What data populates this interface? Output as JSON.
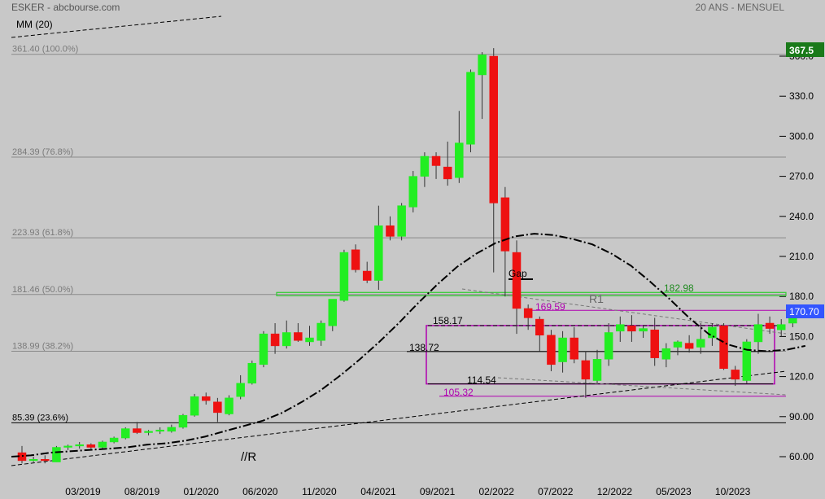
{
  "header": {
    "symbol_source": "ESKER - abcbourse.com",
    "period": "20 ANS - MENSUEL",
    "indicator": "MM (20)"
  },
  "colors": {
    "background": "#c8c8c8",
    "up": "#22ee22",
    "down": "#ee1111",
    "fib_label": "#7a7a7a",
    "green_level": "#1f8a1f",
    "magenta": "#b000b0",
    "last_price_bg": "#1a7a1a",
    "current_tag_bg": "#3355ff",
    "text": "#000000"
  },
  "chart_data": {
    "type": "candlestick",
    "y_axis": {
      "ticks": [
        "60.00",
        "90.00",
        "120.0",
        "150.0",
        "180.0",
        "210.0",
        "240.0",
        "270.0",
        "300.0",
        "330.0",
        "360.0"
      ],
      "range": [
        43,
        376
      ]
    },
    "x_axis": {
      "labels": [
        "03/2019",
        "08/2019",
        "01/2020",
        "06/2020",
        "11/2020",
        "04/2021",
        "09/2021",
        "02/2022",
        "07/2022",
        "12/2022",
        "05/2023",
        "10/2023"
      ]
    },
    "price_tags": {
      "last_high": "367.5",
      "current": "170.70"
    },
    "fib_levels": [
      {
        "label": "361.40  (100.0%)",
        "value": 361.4
      },
      {
        "label": "284.39  (76.8%)",
        "value": 284.39
      },
      {
        "label": "223.93  (61.8%)",
        "value": 223.93
      },
      {
        "label": "181.46  (50.0%)",
        "value": 181.46
      },
      {
        "label": "138.99  (38.2%)",
        "value": 138.99
      },
      {
        "label": "85.39  (23.6%)",
        "value": 85.39
      }
    ],
    "annotations": {
      "gap": "Gap",
      "r1": "R1",
      "level_182": "182.98",
      "level_169": "169.59",
      "level_158": "158.17",
      "level_138": "138.72",
      "level_114": "114.54",
      "level_105": "105.32",
      "support_label": "//R"
    },
    "candles": [
      [
        63,
        68,
        55,
        57
      ],
      [
        57,
        60,
        56,
        58
      ],
      [
        58,
        61,
        55,
        57
      ],
      [
        56,
        68,
        56,
        67
      ],
      [
        67,
        69,
        65,
        68
      ],
      [
        68,
        71,
        66,
        69
      ],
      [
        69,
        70,
        66,
        67
      ],
      [
        67,
        72,
        66,
        71
      ],
      [
        71,
        75,
        70,
        74
      ],
      [
        74,
        82,
        73,
        81
      ],
      [
        81,
        86,
        77,
        78
      ],
      [
        78,
        80,
        76,
        79
      ],
      [
        79,
        82,
        77,
        80
      ],
      [
        79,
        84,
        78,
        82
      ],
      [
        82,
        92,
        81,
        91
      ],
      [
        91,
        107,
        90,
        105
      ],
      [
        105,
        108,
        99,
        102
      ],
      [
        101,
        104,
        86,
        93
      ],
      [
        92,
        106,
        91,
        104
      ],
      [
        105,
        121,
        103,
        115
      ],
      [
        115,
        132,
        114,
        130
      ],
      [
        129,
        154,
        127,
        152
      ],
      [
        152,
        160,
        137,
        143
      ],
      [
        143,
        162,
        141,
        153
      ],
      [
        153,
        160,
        146,
        147
      ],
      [
        146,
        158,
        143,
        149
      ],
      [
        147,
        162,
        143,
        160
      ],
      [
        158,
        178,
        154,
        178
      ],
      [
        177,
        215,
        176,
        213
      ],
      [
        215,
        219,
        198,
        200
      ],
      [
        199,
        206,
        190,
        192
      ],
      [
        192,
        248,
        185,
        233
      ],
      [
        233,
        240,
        222,
        225
      ],
      [
        225,
        250,
        222,
        248
      ],
      [
        247,
        274,
        243,
        270
      ],
      [
        270,
        288,
        262,
        285
      ],
      [
        285,
        288,
        268,
        278
      ],
      [
        277,
        296,
        263,
        268
      ],
      [
        269,
        319,
        265,
        295
      ],
      [
        294,
        350,
        288,
        348
      ],
      [
        346,
        363,
        313,
        361
      ],
      [
        360,
        366,
        198,
        250
      ],
      [
        254,
        262,
        180,
        214
      ],
      [
        213,
        222,
        152,
        171
      ],
      [
        171,
        174,
        155,
        164
      ],
      [
        163,
        165,
        139,
        151
      ],
      [
        151,
        155,
        124,
        129
      ],
      [
        131,
        154,
        123,
        149
      ],
      [
        149,
        157,
        130,
        133
      ],
      [
        132,
        139,
        104,
        118
      ],
      [
        117,
        140,
        115,
        133
      ],
      [
        133,
        160,
        128,
        153
      ],
      [
        154,
        165,
        146,
        159
      ],
      [
        158,
        166,
        146,
        154
      ],
      [
        154,
        158,
        149,
        156
      ],
      [
        155,
        164,
        128,
        134
      ],
      [
        133,
        145,
        127,
        141
      ],
      [
        142,
        147,
        136,
        146
      ],
      [
        145,
        151,
        138,
        141
      ],
      [
        142,
        160,
        137,
        148
      ],
      [
        149,
        160,
        143,
        157
      ],
      [
        158,
        160,
        125,
        126
      ],
      [
        125,
        128,
        113,
        118
      ],
      [
        117,
        148,
        115,
        146
      ],
      [
        146,
        167,
        137,
        159
      ],
      [
        160,
        165,
        152,
        156
      ],
      [
        155,
        163,
        150,
        159
      ],
      [
        160,
        172,
        157,
        169
      ]
    ],
    "ma20": [
      [
        43,
        60
      ],
      [
        47,
        61
      ],
      [
        52,
        63
      ],
      [
        56,
        64
      ],
      [
        59,
        65
      ],
      [
        62,
        66
      ],
      [
        65,
        67
      ],
      [
        68,
        69
      ],
      [
        70,
        70
      ],
      [
        72,
        72
      ],
      [
        75,
        75
      ],
      [
        79,
        79
      ],
      [
        83,
        83
      ],
      [
        87,
        87
      ],
      [
        93,
        93
      ],
      [
        101,
        101
      ],
      [
        110,
        110
      ],
      [
        121,
        121
      ],
      [
        133,
        133
      ],
      [
        146,
        146
      ],
      [
        160,
        160
      ],
      [
        175,
        175
      ],
      [
        189,
        189
      ],
      [
        202,
        202
      ],
      [
        212,
        212
      ],
      [
        220,
        220
      ],
      [
        225,
        225
      ],
      [
        227,
        227
      ],
      [
        226,
        226
      ],
      [
        223,
        223
      ],
      [
        219,
        219
      ],
      [
        212,
        212
      ],
      [
        203,
        203
      ],
      [
        191,
        191
      ],
      [
        178,
        178
      ],
      [
        164,
        164
      ],
      [
        152,
        152
      ],
      [
        144,
        144
      ],
      [
        140,
        140
      ],
      [
        139,
        139
      ],
      [
        140,
        140
      ],
      [
        143,
        143
      ]
    ]
  }
}
